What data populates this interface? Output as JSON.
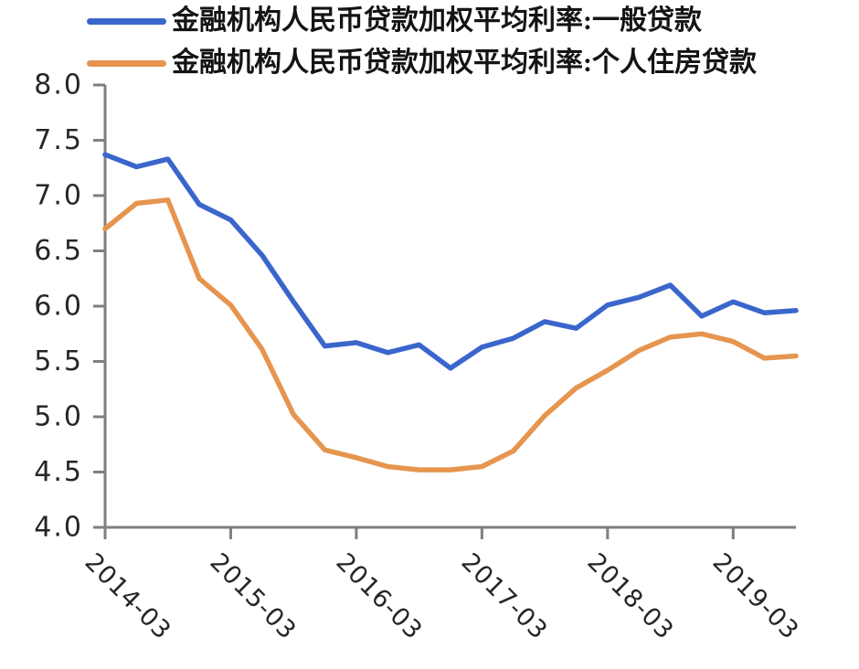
{
  "legend": [
    {
      "label": "金融机构人民币贷款加权平均利率:一般贷款",
      "color": "#3A66CC"
    },
    {
      "label": "金融机构人民币贷款加权平均利率:个人住房贷款",
      "color": "#E6954F"
    }
  ],
  "chart_data": {
    "type": "line",
    "x": [
      "2014-03",
      "2014-06",
      "2014-09",
      "2014-12",
      "2015-03",
      "2015-06",
      "2015-09",
      "2015-12",
      "2016-03",
      "2016-06",
      "2016-09",
      "2016-12",
      "2017-03",
      "2017-06",
      "2017-09",
      "2017-12",
      "2018-03",
      "2018-06",
      "2018-09",
      "2018-12",
      "2019-03",
      "2019-06",
      "2019-09"
    ],
    "x_tick_labels": [
      "2014-03",
      "2015-03",
      "2016-03",
      "2017-03",
      "2018-03",
      "2019-03"
    ],
    "series": [
      {
        "name": "金融机构人民币贷款加权平均利率:一般贷款",
        "color": "#3A66CC",
        "values": [
          7.37,
          7.26,
          7.33,
          6.92,
          6.78,
          6.46,
          6.04,
          5.64,
          5.67,
          5.58,
          5.65,
          5.44,
          5.63,
          5.71,
          5.86,
          5.8,
          6.01,
          6.08,
          6.19,
          5.91,
          6.04,
          5.94,
          5.96
        ]
      },
      {
        "name": "金融机构人民币贷款加权平均利率:个人住房贷款",
        "color": "#E6954F",
        "values": [
          6.7,
          6.93,
          6.96,
          6.25,
          6.01,
          5.61,
          5.02,
          4.7,
          4.63,
          4.55,
          4.52,
          4.52,
          4.55,
          4.69,
          5.01,
          5.26,
          5.42,
          5.6,
          5.72,
          5.75,
          5.68,
          5.53,
          5.55
        ]
      }
    ],
    "y_tick_labels": [
      "8.0",
      "7.5",
      "7.0",
      "6.5",
      "6.0",
      "5.5",
      "5.0",
      "4.5",
      "4.0"
    ],
    "y_ticks": [
      8.0,
      7.5,
      7.0,
      6.5,
      6.0,
      5.5,
      5.0,
      4.5,
      4.0
    ],
    "ylim": [
      4.0,
      8.0
    ],
    "title": "",
    "xlabel": "",
    "ylabel": "",
    "grid": false,
    "legend_position": "top-left",
    "axis_color": "#7F7F7F",
    "tick_label_color": "#262626"
  }
}
